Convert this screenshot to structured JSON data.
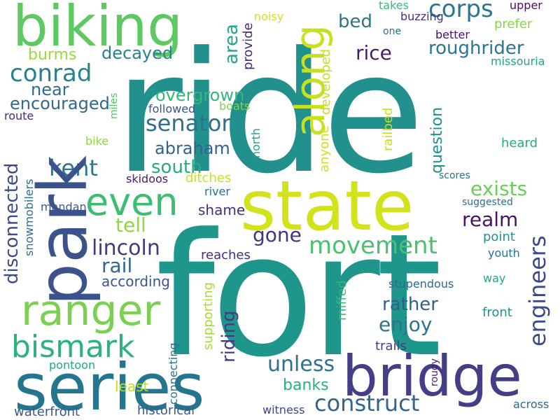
{
  "words": [
    {
      "text": "ride",
      "color": "#22908c"
    },
    {
      "text": "fort",
      "color": "#1f968b"
    },
    {
      "text": "state",
      "color": "#d2e21b"
    },
    {
      "text": "series",
      "color": "#23768e"
    },
    {
      "text": "park",
      "color": "#3b528b"
    },
    {
      "text": "bridge",
      "color": "#433e85"
    },
    {
      "text": "biking",
      "color": "#5ec962"
    },
    {
      "text": "ranger",
      "color": "#7ad151"
    },
    {
      "text": "along",
      "color": "#c8e020"
    },
    {
      "text": "even",
      "color": "#3dbc74"
    },
    {
      "text": "bismark",
      "color": "#2db27d"
    },
    {
      "text": "conrad",
      "color": "#26818e"
    },
    {
      "text": "senator",
      "color": "#2c728e"
    },
    {
      "text": "abraham",
      "color": "#33638d"
    },
    {
      "text": "kent",
      "color": "#2a788e"
    },
    {
      "text": "corps",
      "color": "#2a788e"
    },
    {
      "text": "roughrider",
      "color": "#2b758e"
    },
    {
      "text": "engineers",
      "color": "#3e4989"
    },
    {
      "text": "movement",
      "color": "#4ac16d"
    },
    {
      "text": "construct",
      "color": "#32658e"
    },
    {
      "text": "disconnected",
      "color": "#3e4a89"
    },
    {
      "text": "lincoln",
      "color": "#443a83"
    },
    {
      "text": "unless",
      "color": "#2d718e"
    },
    {
      "text": "exists",
      "color": "#6ccd5a"
    },
    {
      "text": "realm",
      "color": "#471365"
    },
    {
      "text": "enjoy",
      "color": "#2c738e"
    },
    {
      "text": "rather",
      "color": "#35608d"
    },
    {
      "text": "gone",
      "color": "#46337f"
    },
    {
      "text": "riding",
      "color": "#443b84"
    },
    {
      "text": "tell",
      "color": "#90d743"
    },
    {
      "text": "rail",
      "color": "#32648e"
    },
    {
      "text": "rice",
      "color": "#481b6d"
    },
    {
      "text": "decayed",
      "color": "#26828e"
    },
    {
      "text": "overgrown",
      "color": "#35b779"
    },
    {
      "text": "south",
      "color": "#25ab82"
    },
    {
      "text": "near",
      "color": "#306a8e"
    },
    {
      "text": "encouraged",
      "color": "#31688e"
    },
    {
      "text": "burms",
      "color": "#9bd93c"
    },
    {
      "text": "area",
      "color": "#22a884"
    },
    {
      "text": "bed",
      "color": "#2b758e"
    },
    {
      "text": "question",
      "color": "#20928c"
    },
    {
      "text": "developed",
      "color": "#c2df23"
    },
    {
      "text": "railbed",
      "color": "#c5e021"
    },
    {
      "text": "anyone",
      "color": "#d0e11c"
    },
    {
      "text": "provide",
      "color": "#482878"
    },
    {
      "text": "north",
      "color": "#1f9f88"
    },
    {
      "text": "miles",
      "color": "#4ec36b"
    },
    {
      "text": "followed",
      "color": "#39568c"
    },
    {
      "text": "boats",
      "color": "#7fd34e"
    },
    {
      "text": "route",
      "color": "#472c7a"
    },
    {
      "text": "bike",
      "color": "#8ed645"
    },
    {
      "text": "skidoos",
      "color": "#481b6d"
    },
    {
      "text": "ditches",
      "color": "#c8e020"
    },
    {
      "text": "river",
      "color": "#2e6e8e"
    },
    {
      "text": "snowmobilers",
      "color": "#2f6c8e"
    },
    {
      "text": "mandan",
      "color": "#355f8d"
    },
    {
      "text": "shame",
      "color": "#46307e"
    },
    {
      "text": "reaches",
      "color": "#472d7b"
    },
    {
      "text": "according",
      "color": "#3a548c"
    },
    {
      "text": "supporting",
      "color": "#a8db34"
    },
    {
      "text": "miffed",
      "color": "#35b779"
    },
    {
      "text": "pontoon",
      "color": "#22a785"
    },
    {
      "text": "least",
      "color": "#bade28"
    },
    {
      "text": "connecting",
      "color": "#2d708e"
    },
    {
      "text": "banks",
      "color": "#2ab07f"
    },
    {
      "text": "trails",
      "color": "#433e85"
    },
    {
      "text": "roudy",
      "color": "#481f70"
    },
    {
      "text": "witness",
      "color": "#3f4788"
    },
    {
      "text": "historical",
      "color": "#365c8d"
    },
    {
      "text": "waterfront",
      "color": "#38598c"
    },
    {
      "text": "across",
      "color": "#31688e"
    },
    {
      "text": "noisy",
      "color": "#d2e21b"
    },
    {
      "text": "takes",
      "color": "#38b977"
    },
    {
      "text": "buzzing",
      "color": "#46327e"
    },
    {
      "text": "upper",
      "color": "#471063"
    },
    {
      "text": "one",
      "color": "#2e6f8e"
    },
    {
      "text": "prefer",
      "color": "#86d549"
    },
    {
      "text": "better",
      "color": "#471365"
    },
    {
      "text": "missouria",
      "color": "#22a785"
    },
    {
      "text": "heard",
      "color": "#26ad81"
    },
    {
      "text": "scores",
      "color": "#2e6e8e"
    },
    {
      "text": "suggested",
      "color": "#2d718e"
    },
    {
      "text": "point",
      "color": "#21918c"
    },
    {
      "text": "youth",
      "color": "#2c728e"
    },
    {
      "text": "way",
      "color": "#22a785"
    },
    {
      "text": "front",
      "color": "#1f948c"
    },
    {
      "text": "stupendous",
      "color": "#31688e"
    }
  ]
}
